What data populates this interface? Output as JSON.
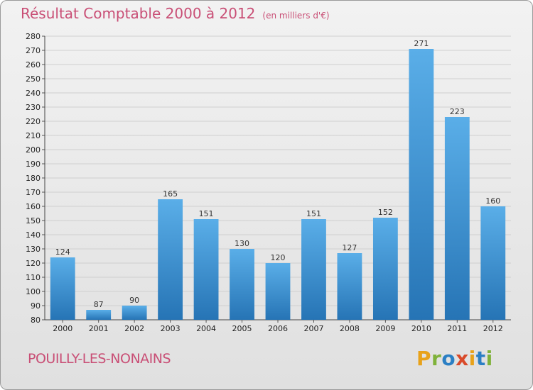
{
  "chart_data": {
    "type": "bar",
    "title": "Résultat Comptable 2000 à 2012",
    "unit": "(en milliers d'€)",
    "categories": [
      "2000",
      "2001",
      "2002",
      "2003",
      "2004",
      "2005",
      "2006",
      "2007",
      "2008",
      "2009",
      "2010",
      "2011",
      "2012"
    ],
    "values": [
      124,
      87,
      90,
      165,
      151,
      130,
      120,
      151,
      127,
      152,
      271,
      223,
      160
    ],
    "ylim": [
      80,
      280
    ],
    "ytick_step": 10,
    "grid": true,
    "bar_color": "#3d94d6",
    "title_color": "#c94f76"
  },
  "footer": {
    "city": "POUILLY-LES-NONAINS",
    "logo": "Proxiti"
  }
}
